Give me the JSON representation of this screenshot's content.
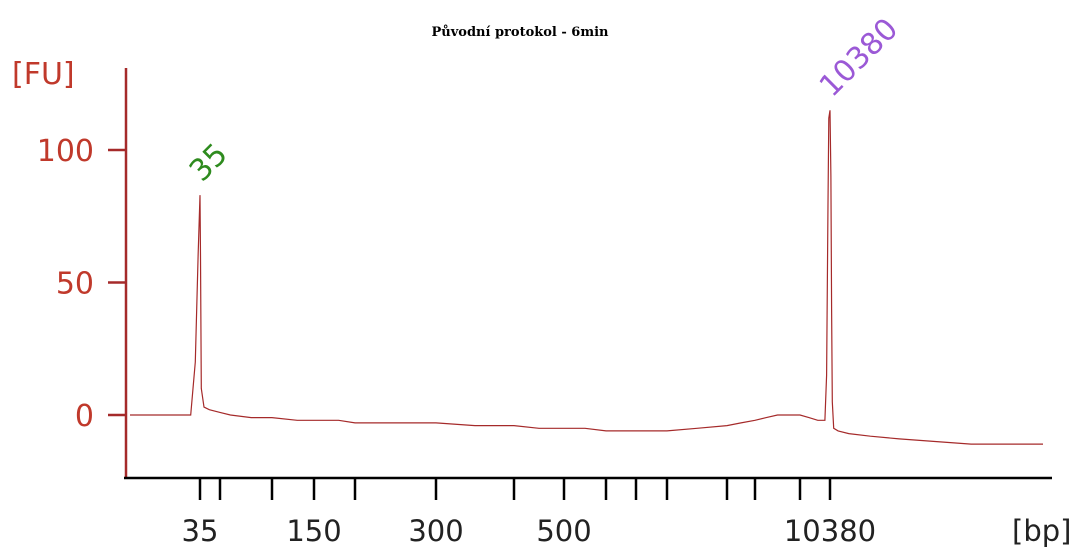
{
  "chart_data": {
    "type": "line",
    "title": "Původní protokol - 6min",
    "ylabel": "[FU]",
    "xlabel": "[bp]",
    "ylim": [
      -20,
      130
    ],
    "y_ticks": [
      {
        "value": 0,
        "label": "0"
      },
      {
        "value": 50,
        "label": "50"
      },
      {
        "value": 100,
        "label": "100"
      }
    ],
    "x_ticks": [
      {
        "value": 35,
        "label": "35"
      },
      {
        "value": 50,
        "label": ""
      },
      {
        "value": 100,
        "label": ""
      },
      {
        "value": 150,
        "label": "150"
      },
      {
        "value": 200,
        "label": ""
      },
      {
        "value": 300,
        "label": "300"
      },
      {
        "value": 400,
        "label": ""
      },
      {
        "value": 500,
        "label": "500"
      },
      {
        "value": 600,
        "label": ""
      },
      {
        "value": 700,
        "label": ""
      },
      {
        "value": 1000,
        "label": ""
      },
      {
        "value": 2000,
        "label": ""
      },
      {
        "value": 3000,
        "label": ""
      },
      {
        "value": 7000,
        "label": ""
      },
      {
        "value": 10380,
        "label": "10380"
      }
    ],
    "peaks": [
      {
        "label": "35",
        "x": 35,
        "height": 83,
        "color": "#2e8b1e"
      },
      {
        "label": "10380",
        "x": 10380,
        "height": 115,
        "color": "#9b59d6"
      }
    ],
    "series": [
      {
        "color": "#a52a2a",
        "points": [
          [
            20,
            0
          ],
          [
            25,
            0
          ],
          [
            30,
            0
          ],
          [
            33,
            0
          ],
          [
            34,
            20
          ],
          [
            34.6,
            60
          ],
          [
            35,
            83
          ],
          [
            35.4,
            60
          ],
          [
            36,
            10
          ],
          [
            38,
            3
          ],
          [
            42,
            2
          ],
          [
            50,
            1
          ],
          [
            60,
            0
          ],
          [
            80,
            -1
          ],
          [
            100,
            -1
          ],
          [
            130,
            -2
          ],
          [
            150,
            -2
          ],
          [
            180,
            -2
          ],
          [
            200,
            -3
          ],
          [
            250,
            -3
          ],
          [
            300,
            -3
          ],
          [
            350,
            -4
          ],
          [
            400,
            -4
          ],
          [
            450,
            -5
          ],
          [
            500,
            -5
          ],
          [
            550,
            -5
          ],
          [
            600,
            -6
          ],
          [
            650,
            -6
          ],
          [
            700,
            -6
          ],
          [
            800,
            -6
          ],
          [
            1000,
            -6
          ],
          [
            1500,
            -5
          ],
          [
            2000,
            -4
          ],
          [
            2500,
            -3
          ],
          [
            3000,
            -2
          ],
          [
            4000,
            -1
          ],
          [
            5000,
            0
          ],
          [
            6000,
            0
          ],
          [
            7000,
            0
          ],
          [
            8000,
            -1
          ],
          [
            9000,
            -2
          ],
          [
            9800,
            -2
          ],
          [
            10000,
            15
          ],
          [
            10150,
            80
          ],
          [
            10250,
            112
          ],
          [
            10380,
            115
          ],
          [
            10500,
            90
          ],
          [
            10600,
            40
          ],
          [
            10700,
            5
          ],
          [
            10900,
            -5
          ],
          [
            11500,
            -6
          ],
          [
            13000,
            -7
          ],
          [
            16000,
            -8
          ],
          [
            20000,
            -9
          ],
          [
            25000,
            -10
          ],
          [
            30000,
            -11
          ],
          [
            40000,
            -11
          ]
        ]
      }
    ]
  }
}
